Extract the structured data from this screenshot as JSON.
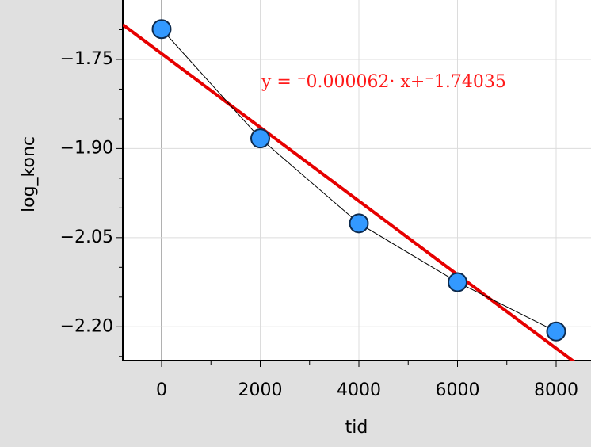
{
  "chart_data": {
    "type": "scatter",
    "x_label": "tid",
    "y_label": "log_konc",
    "x": [
      0,
      2000,
      4000,
      6000,
      8000
    ],
    "series": [
      {
        "color": "#3399ff",
        "values": [
          -1.699,
          -1.883,
          -2.026,
          -2.125,
          -2.208
        ]
      }
    ],
    "connect_line": true,
    "fit": {
      "slope": -6.2e-05,
      "intercept": -1.74035,
      "color": "#e60000",
      "label": "y = ⁻0.000062· x+⁻1.74035"
    },
    "xlim": [
      -787,
      8707
    ],
    "ylim": [
      -2.257,
      -1.65
    ],
    "xticks": [
      0,
      2000,
      4000,
      6000,
      8000
    ],
    "yticks": [
      {
        "value": -1.75,
        "label": "−1.75"
      },
      {
        "value": -1.9,
        "label": "−1.90"
      },
      {
        "value": -2.05,
        "label": "−2.05"
      },
      {
        "value": -2.2,
        "label": "−2.20"
      }
    ],
    "xminorticks": [
      1000,
      3000,
      5000,
      7000
    ],
    "yminorticks": [
      -1.7,
      -1.8,
      -1.85,
      -1.95,
      -2.0,
      -2.1,
      -2.15,
      -2.25
    ],
    "grid": true
  }
}
